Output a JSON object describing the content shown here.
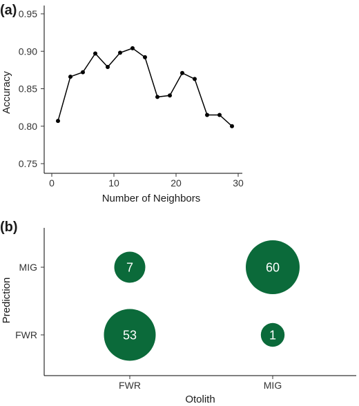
{
  "panels": {
    "a_label": "(a)",
    "b_label": "(b)"
  },
  "chart_data": [
    {
      "type": "line",
      "title": "",
      "xlabel": "Number of Neighbors",
      "ylabel": "Accuracy",
      "xlim": [
        0,
        30
      ],
      "ylim": [
        0.75,
        0.95
      ],
      "x_ticks": [
        0,
        10,
        20,
        30
      ],
      "y_ticks": [
        0.75,
        0.8,
        0.85,
        0.9,
        0.95
      ],
      "y_tick_labels": [
        "0.75",
        "0.80",
        "0.85",
        "0.90",
        "0.95"
      ],
      "color": "#000000",
      "grid": false,
      "series": [
        {
          "x": [
            1,
            3,
            5,
            7,
            9,
            11,
            13,
            15,
            17,
            19,
            21,
            23,
            25,
            27,
            29
          ],
          "y": [
            0.807,
            0.866,
            0.872,
            0.897,
            0.879,
            0.898,
            0.904,
            0.892,
            0.839,
            0.841,
            0.871,
            0.863,
            0.815,
            0.815,
            0.8
          ]
        }
      ]
    },
    {
      "type": "scatter",
      "title": "",
      "xlabel": "Otolith",
      "ylabel": "Prediction",
      "x_categories": [
        "FWR",
        "MIG"
      ],
      "y_categories": [
        "FWR",
        "MIG"
      ],
      "color": "#0b6a3a",
      "grid": false,
      "points": [
        {
          "x": "FWR",
          "y": "MIG",
          "value": 7,
          "label": "7"
        },
        {
          "x": "MIG",
          "y": "MIG",
          "value": 60,
          "label": "60"
        },
        {
          "x": "FWR",
          "y": "FWR",
          "value": 53,
          "label": "53"
        },
        {
          "x": "MIG",
          "y": "FWR",
          "value": 1,
          "label": "1"
        }
      ]
    }
  ]
}
